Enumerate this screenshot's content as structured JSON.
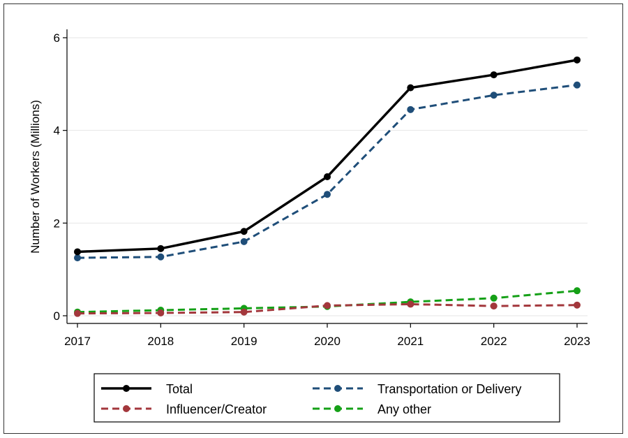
{
  "chart_data": {
    "type": "line",
    "title": "",
    "xlabel": "",
    "ylabel": "Number of Workers (Millions)",
    "categories": [
      "2017",
      "2018",
      "2019",
      "2020",
      "2021",
      "2022",
      "2023"
    ],
    "y_ticks": [
      "0",
      "2",
      "4",
      "6"
    ],
    "ylim": [
      0,
      6
    ],
    "grid": true,
    "legend_position": "bottom",
    "series": [
      {
        "name": "Total",
        "color": "#000000",
        "style": "solid",
        "values": [
          1.38,
          1.45,
          1.82,
          3.0,
          4.92,
          5.2,
          5.52
        ]
      },
      {
        "name": "Transportation or Delivery",
        "color": "#1f4e79",
        "style": "dashed",
        "values": [
          1.25,
          1.27,
          1.6,
          2.62,
          4.45,
          4.76,
          4.98
        ]
      },
      {
        "name": "Influencer/Creator",
        "color": "#a3373c",
        "style": "dashed",
        "values": [
          0.05,
          0.06,
          0.08,
          0.22,
          0.25,
          0.21,
          0.23
        ]
      },
      {
        "name": "Any other",
        "color": "#15a017",
        "style": "dashed",
        "values": [
          0.08,
          0.12,
          0.16,
          0.2,
          0.3,
          0.38,
          0.54
        ]
      }
    ]
  }
}
